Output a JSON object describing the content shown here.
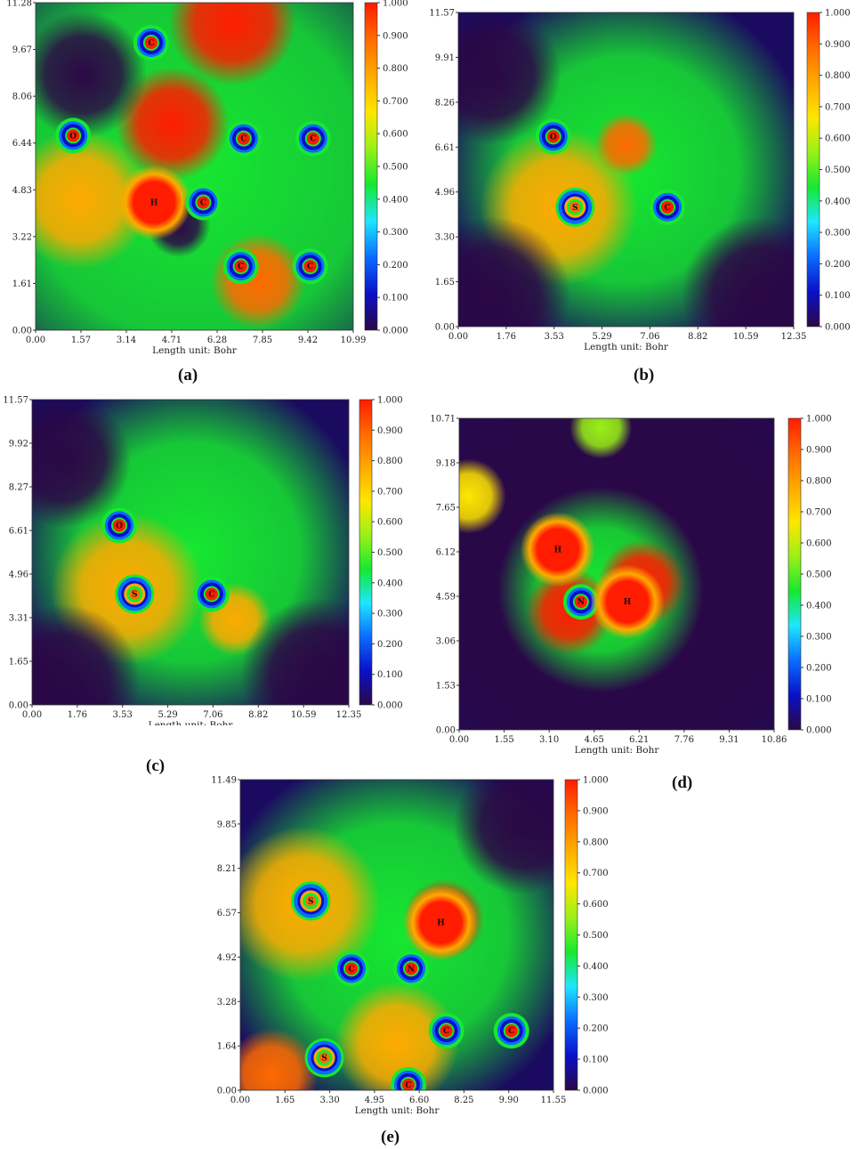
{
  "panels_labels": [
    "(a)",
    "(b)",
    "(c)",
    "(d)",
    "(e)"
  ],
  "colorbar_ticks": [
    "0.000",
    "0.100",
    "0.200",
    "0.300",
    "0.400",
    "0.500",
    "0.600",
    "0.700",
    "0.800",
    "0.900",
    "1.000"
  ],
  "colors": {
    "scale": [
      "#2b0845",
      "#0a10c8",
      "#0a6cff",
      "#1ee6ff",
      "#16e830",
      "#9af018",
      "#ffe600",
      "#ffaa00",
      "#ff6a00",
      "#ff1c00"
    ]
  },
  "chart_data": [
    {
      "type": "heatmap",
      "panel": "(a)",
      "xlabel": "Length unit: Bohr",
      "xticks": [
        "0.00",
        "1.57",
        "3.14",
        "4.71",
        "6.28",
        "7.85",
        "9.42",
        "10.99"
      ],
      "yticks": [
        "0.00",
        "1.61",
        "3.22",
        "4.83",
        "6.44",
        "8.06",
        "9.67",
        "11.28"
      ],
      "xlim": [
        0,
        10.99
      ],
      "ylim": [
        0,
        11.28
      ],
      "zlim": [
        0,
        1
      ],
      "atoms": [
        {
          "label": "C",
          "x": 4.0,
          "y": 9.9
        },
        {
          "label": "O",
          "x": 1.3,
          "y": 6.7
        },
        {
          "label": "C",
          "x": 7.2,
          "y": 6.6
        },
        {
          "label": "C",
          "x": 9.6,
          "y": 6.6
        },
        {
          "label": "H",
          "x": 4.1,
          "y": 4.4
        },
        {
          "label": "C",
          "x": 5.8,
          "y": 4.4
        },
        {
          "label": "C",
          "x": 7.1,
          "y": 2.2
        },
        {
          "label": "C",
          "x": 9.5,
          "y": 2.2
        }
      ]
    },
    {
      "type": "heatmap",
      "panel": "(b)",
      "xlabel": "Length unit: Bohr",
      "xticks": [
        "0.00",
        "1.76",
        "3.53",
        "5.29",
        "7.06",
        "8.82",
        "10.59",
        "12.35"
      ],
      "yticks": [
        "0.00",
        "1.65",
        "3.30",
        "4.96",
        "6.61",
        "8.26",
        "9.91",
        "11.57"
      ],
      "xlim": [
        0,
        12.35
      ],
      "ylim": [
        0,
        11.57
      ],
      "zlim": [
        0,
        1
      ],
      "atoms": [
        {
          "label": "O",
          "x": 3.5,
          "y": 7.0
        },
        {
          "label": "S",
          "x": 4.3,
          "y": 4.4
        },
        {
          "label": "C",
          "x": 7.7,
          "y": 4.4
        }
      ]
    },
    {
      "type": "heatmap",
      "panel": "(c)",
      "xlabel": "Length unit: Bohr",
      "xticks": [
        "0.00",
        "1.76",
        "3.53",
        "5.29",
        "7.06",
        "8.82",
        "10.59",
        "12.35"
      ],
      "yticks": [
        "0.00",
        "1.65",
        "3.31",
        "4.96",
        "6.61",
        "8.27",
        "9.92",
        "11.57"
      ],
      "xlim": [
        0,
        12.35
      ],
      "ylim": [
        0,
        11.57
      ],
      "zlim": [
        0,
        1
      ],
      "atoms": [
        {
          "label": "O",
          "x": 3.4,
          "y": 6.8
        },
        {
          "label": "S",
          "x": 4.0,
          "y": 4.2
        },
        {
          "label": "C",
          "x": 7.0,
          "y": 4.2
        }
      ]
    },
    {
      "type": "heatmap",
      "panel": "(d)",
      "xlabel": "Length unit: Bohr",
      "xticks": [
        "0.00",
        "1.55",
        "3.10",
        "4.65",
        "6.21",
        "7.76",
        "9.31",
        "10.86"
      ],
      "yticks": [
        "0.00",
        "1.53",
        "3.06",
        "4.59",
        "6.12",
        "7.65",
        "9.18",
        "10.71"
      ],
      "xlim": [
        0,
        10.86
      ],
      "ylim": [
        0,
        10.71
      ],
      "zlim": [
        0,
        1
      ],
      "atoms": [
        {
          "label": "H",
          "x": 3.4,
          "y": 6.2
        },
        {
          "label": "N",
          "x": 4.2,
          "y": 4.4
        },
        {
          "label": "H",
          "x": 5.8,
          "y": 4.4
        }
      ]
    },
    {
      "type": "heatmap",
      "panel": "(e)",
      "xlabel": "Length unit: Bohr",
      "xticks": [
        "0.00",
        "1.65",
        "3.30",
        "4.95",
        "6.60",
        "8.25",
        "9.90",
        "11.55"
      ],
      "yticks": [
        "0.00",
        "1.64",
        "3.28",
        "4.92",
        "6.57",
        "8.21",
        "9.85",
        "11.49"
      ],
      "xlim": [
        0,
        11.55
      ],
      "ylim": [
        0,
        11.49
      ],
      "zlim": [
        0,
        1
      ],
      "atoms": [
        {
          "label": "S",
          "x": 2.6,
          "y": 7.0
        },
        {
          "label": "H",
          "x": 7.4,
          "y": 6.2
        },
        {
          "label": "C",
          "x": 4.1,
          "y": 4.5
        },
        {
          "label": "N",
          "x": 6.3,
          "y": 4.5
        },
        {
          "label": "C",
          "x": 7.6,
          "y": 2.2
        },
        {
          "label": "C",
          "x": 10.0,
          "y": 2.2
        },
        {
          "label": "S",
          "x": 3.1,
          "y": 1.2
        },
        {
          "label": "C",
          "x": 6.2,
          "y": 0.2
        }
      ]
    }
  ]
}
